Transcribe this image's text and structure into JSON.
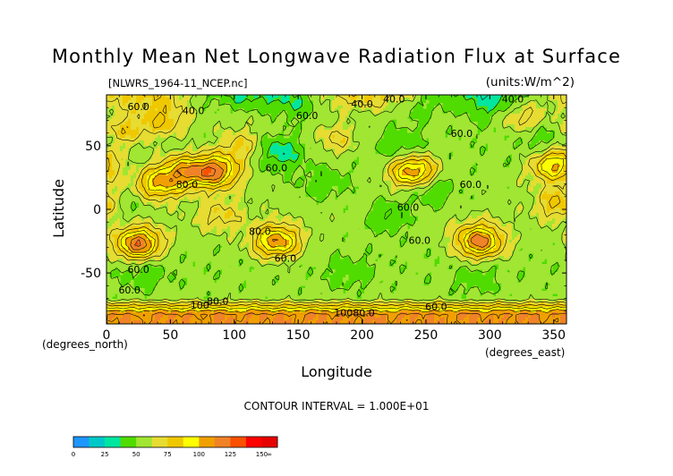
{
  "chart_data": {
    "type": "heatmap",
    "title": "Monthly Mean Net Longwave Radiation Flux at Surface",
    "subtitle": "[NLWRS_1964-11_NCEP.nc]",
    "units": "(units:W/m^2)",
    "xlabel": "Longitude",
    "ylabel": "Latitude",
    "x_unit_label": "(degrees_east)",
    "y_unit_label": "(degrees_north)",
    "xlim": [
      0,
      360
    ],
    "ylim": [
      -90,
      90
    ],
    "x_ticks": [
      "0",
      "50",
      "100",
      "150",
      "200",
      "250",
      "300",
      "350"
    ],
    "y_ticks": [
      "50",
      "0",
      "-50"
    ],
    "contour_note": "CONTOUR INTERVAL = 1.000E+01",
    "contour_labels": [
      {
        "text": "40.0",
        "lon": 225,
        "lat": 84
      },
      {
        "text": "40.0",
        "lon": 318,
        "lat": 84
      },
      {
        "text": "40.0",
        "lon": 68,
        "lat": 75
      },
      {
        "text": "60.0",
        "lon": 25,
        "lat": 78
      },
      {
        "text": "40.0",
        "lon": 200,
        "lat": 80
      },
      {
        "text": "60.0",
        "lon": 157,
        "lat": 71
      },
      {
        "text": "60.0",
        "lon": 278,
        "lat": 57
      },
      {
        "text": "60.0",
        "lon": 133,
        "lat": 30
      },
      {
        "text": "80.0",
        "lon": 63,
        "lat": 17
      },
      {
        "text": "60.0",
        "lon": 285,
        "lat": 17
      },
      {
        "text": "60.0",
        "lon": 236,
        "lat": -1
      },
      {
        "text": "80.0",
        "lon": 120,
        "lat": -20
      },
      {
        "text": "60.0",
        "lon": 245,
        "lat": -27
      },
      {
        "text": "60.0",
        "lon": 140,
        "lat": -41
      },
      {
        "text": "60.0",
        "lon": 25,
        "lat": -50
      },
      {
        "text": "60.0",
        "lon": 18,
        "lat": -66
      },
      {
        "text": "80.0",
        "lon": 87,
        "lat": -75
      },
      {
        "text": "60.0",
        "lon": 258,
        "lat": -79
      },
      {
        "text": "100",
        "lon": 73,
        "lat": -78
      },
      {
        "text": "10080.0",
        "lon": 194,
        "lat": -84
      }
    ],
    "colorbar": {
      "levels": [
        "0",
        "25",
        "50",
        "75",
        "100",
        "125",
        "150",
        "∞"
      ],
      "colors": [
        "#1e96ff",
        "#00c8c8",
        "#00e6a0",
        "#50dc00",
        "#a0e632",
        "#e6dc32",
        "#f0c800",
        "#ffff00",
        "#f0a000",
        "#f08228",
        "#fa5000",
        "#ff0000",
        "#e60000"
      ]
    },
    "fields": [
      {
        "lon": 135,
        "lat": 45,
        "value": -22
      },
      {
        "lon": 170,
        "lat": 20,
        "value": -15
      },
      {
        "lon": 220,
        "lat": -5,
        "value": -18
      },
      {
        "lon": 255,
        "lat": 15,
        "value": -18
      },
      {
        "lon": 230,
        "lat": 50,
        "value": -14
      },
      {
        "lon": 30,
        "lat": -50,
        "value": -12
      },
      {
        "lon": 190,
        "lat": -50,
        "value": -10
      },
      {
        "lon": 300,
        "lat": 75,
        "value": -12
      },
      {
        "lon": 340,
        "lat": 55,
        "value": -12
      },
      {
        "lon": 15,
        "lat": 5,
        "value": -12
      },
      {
        "lon": 290,
        "lat": -55,
        "value": -10
      },
      {
        "lon": 150,
        "lat": 82,
        "value": -12
      },
      {
        "lon": 245,
        "lat": 80,
        "value": -10
      },
      {
        "lon": 85,
        "lat": 30,
        "value": 62
      },
      {
        "lon": 60,
        "lat": 30,
        "value": 44
      },
      {
        "lon": 40,
        "lat": 20,
        "value": 42
      },
      {
        "lon": 25,
        "lat": -27,
        "value": 65
      },
      {
        "lon": 133,
        "lat": -25,
        "value": 55
      },
      {
        "lon": 240,
        "lat": 30,
        "value": 55
      },
      {
        "lon": 292,
        "lat": -25,
        "value": 62
      },
      {
        "lon": 350,
        "lat": 35,
        "value": 48
      },
      {
        "lon": 355,
        "lat": 5,
        "value": 28
      },
      {
        "lon": 105,
        "lat": 50,
        "value": 22
      },
      {
        "lon": 15,
        "lat": 62,
        "value": 22
      },
      {
        "lon": 45,
        "lat": 70,
        "value": 25
      },
      {
        "lon": 180,
        "lat": 55,
        "value": 18
      },
      {
        "lon": 325,
        "lat": 72,
        "value": 20
      },
      {
        "lon": 90,
        "lat": -5,
        "value": 18
      }
    ]
  }
}
